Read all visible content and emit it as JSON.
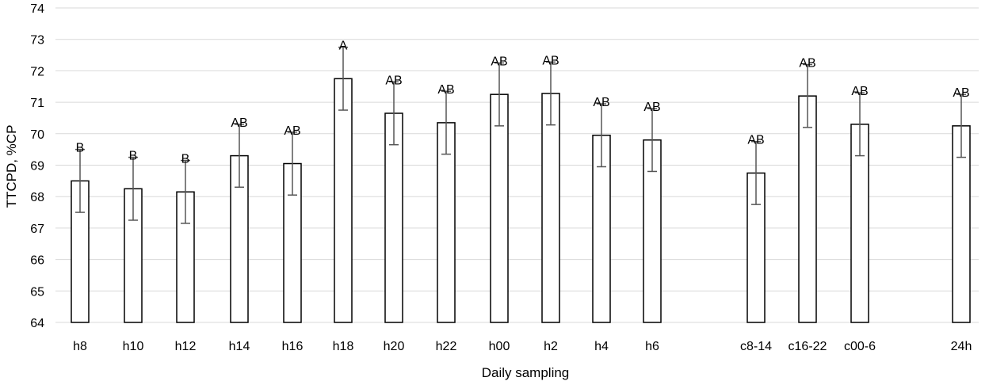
{
  "chart_data": {
    "type": "bar",
    "title": "",
    "xlabel": "Daily sampling",
    "ylabel": "TTCPD, %CP",
    "ylim": [
      64,
      74
    ],
    "yticks": [
      64,
      65,
      66,
      67,
      68,
      69,
      70,
      71,
      72,
      73,
      74
    ],
    "grid": true,
    "categories": [
      "h8",
      "h10",
      "h12",
      "h14",
      "h16",
      "h18",
      "h20",
      "h22",
      "h00",
      "h2",
      "h4",
      "h6",
      "c8-14",
      "c16-22",
      "c00-6",
      "24h"
    ],
    "values": [
      68.5,
      68.25,
      68.15,
      69.3,
      69.05,
      71.75,
      70.65,
      70.35,
      71.25,
      71.28,
      69.95,
      69.8,
      68.75,
      71.2,
      70.3,
      70.25
    ],
    "error": [
      1.0,
      1.0,
      1.0,
      1.0,
      1.0,
      1.0,
      1.0,
      1.0,
      1.0,
      1.0,
      1.0,
      1.0,
      1.0,
      1.0,
      1.0,
      1.0
    ],
    "labels": [
      "B",
      "B",
      "B",
      "AB",
      "AB",
      "A",
      "AB",
      "AB",
      "AB",
      "AB",
      "AB",
      "AB",
      "AB",
      "AB",
      "AB",
      "AB"
    ]
  }
}
